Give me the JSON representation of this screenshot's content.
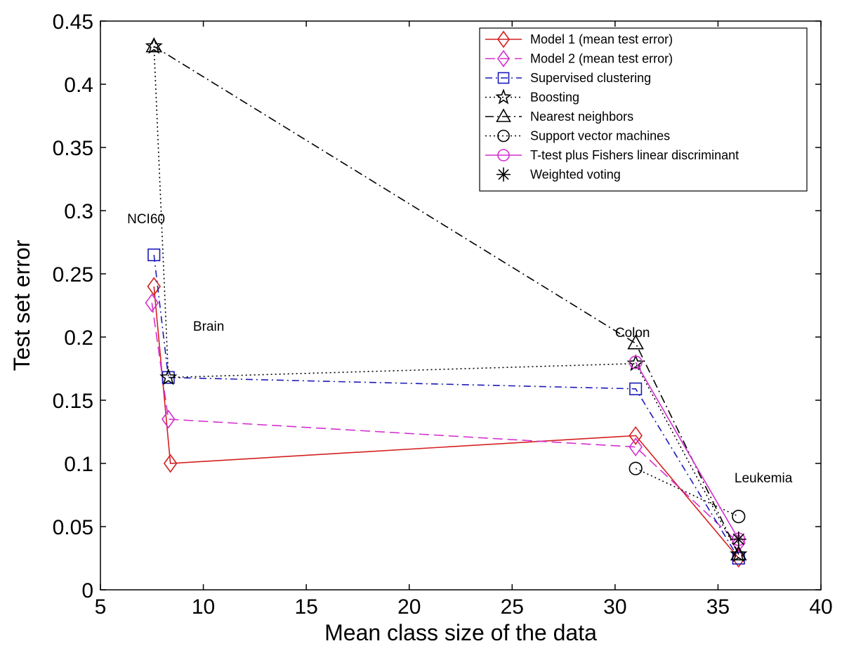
{
  "chart_data": {
    "type": "line",
    "title": "",
    "xlabel": "Mean class size of the data",
    "ylabel": "Test set error",
    "xlim": [
      5,
      40
    ],
    "ylim": [
      0,
      0.45
    ],
    "xticks": [
      5,
      10,
      15,
      20,
      25,
      30,
      35,
      40
    ],
    "yticks": [
      0,
      0.05,
      0.1,
      0.15,
      0.2,
      0.25,
      0.3,
      0.35,
      0.4,
      0.45
    ],
    "grid": false,
    "legend_position": "top-right",
    "annotations": [
      {
        "text": "NCI60",
        "x": 6.3,
        "y": 0.29
      },
      {
        "text": "Brain",
        "x": 9.5,
        "y": 0.205
      },
      {
        "text": "Colon",
        "x": 30,
        "y": 0.2
      },
      {
        "text": "Leukemia",
        "x": 35.8,
        "y": 0.085
      }
    ],
    "series": [
      {
        "name": "Model 1 (mean test error)",
        "color": "#d42020",
        "dash": "",
        "marker": "diamond",
        "x": [
          7.6,
          8.4,
          31,
          36
        ],
        "y": [
          0.24,
          0.1,
          0.122,
          0.025
        ]
      },
      {
        "name": "Model 2 (mean test error)",
        "color": "#d42fd0",
        "dash": "14,7",
        "marker": "diamond",
        "x": [
          7.5,
          8.3,
          31,
          36
        ],
        "y": [
          0.227,
          0.135,
          0.113,
          0.037
        ]
      },
      {
        "name": "Supervised clustering",
        "color": "#1a1ab8",
        "dash": "10,5,2,5",
        "marker": "square",
        "x": [
          7.6,
          8.3,
          31,
          36
        ],
        "y": [
          0.265,
          0.168,
          0.159,
          0.025
        ]
      },
      {
        "name": "Boosting",
        "color": "#000000",
        "dash": "2,4",
        "marker": "star",
        "x": [
          7.6,
          8.3,
          31,
          36
        ],
        "y": [
          0.43,
          0.168,
          0.179,
          0.028
        ]
      },
      {
        "name": "Nearest neighbors",
        "color": "#000000",
        "dash": "12,5,2,5",
        "marker": "triangle",
        "x": [
          7.6,
          31,
          36
        ],
        "y": [
          0.43,
          0.195,
          0.028
        ]
      },
      {
        "name": "Support vector machines",
        "color": "#000000",
        "dash": "2,4",
        "marker": "circle",
        "x": [
          31,
          36
        ],
        "y": [
          0.096,
          0.058
        ]
      },
      {
        "name": "T-test plus Fishers linear discriminant",
        "color": "#d42fd0",
        "dash": "",
        "marker": "circle",
        "x": [
          31,
          36
        ],
        "y": [
          0.18,
          0.04
        ]
      },
      {
        "name": "Weighted voting",
        "color": "#000000",
        "dash": "",
        "marker": "asterisk",
        "x": [
          36
        ],
        "y": [
          0.04
        ]
      }
    ]
  }
}
